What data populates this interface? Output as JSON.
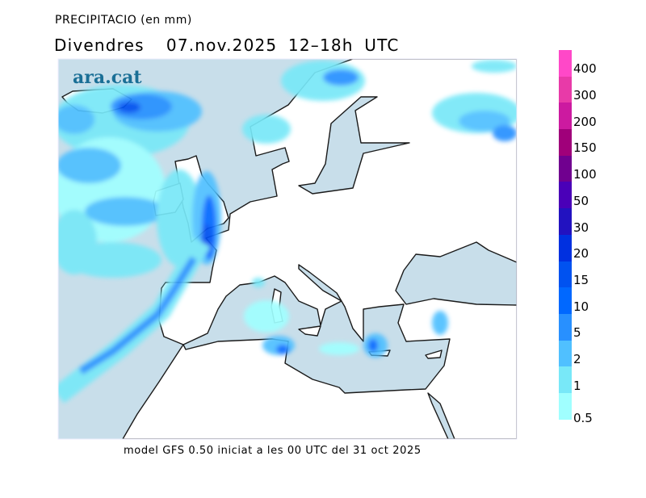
{
  "header": {
    "title": "PRECIPITACIO (en mm)",
    "subtitle": "Divendres  07.nov.2025 12–18h UTC"
  },
  "logo": "ara.cat",
  "footer": "model GFS 0.50 iniciat a les 00 UTC del 31 oct 2025",
  "legend": {
    "unit": "mm",
    "colors": [
      "#ff48c8",
      "#e83aa8",
      "#cc1aa0",
      "#a0007a",
      "#70008f",
      "#4a00b8",
      "#2212c0",
      "#0030e0",
      "#0052f0",
      "#0068ff",
      "#2890ff",
      "#50c0ff",
      "#78e8f8",
      "#a0ffff"
    ],
    "labels": [
      "400",
      "300",
      "200",
      "150",
      "100",
      "50",
      "30",
      "20",
      "15",
      "10",
      "5",
      "2",
      "1",
      "0.5"
    ]
  },
  "colors": {
    "sea": "#c8deea",
    "land": "#ffffff",
    "coast": "#1a1a1a"
  }
}
